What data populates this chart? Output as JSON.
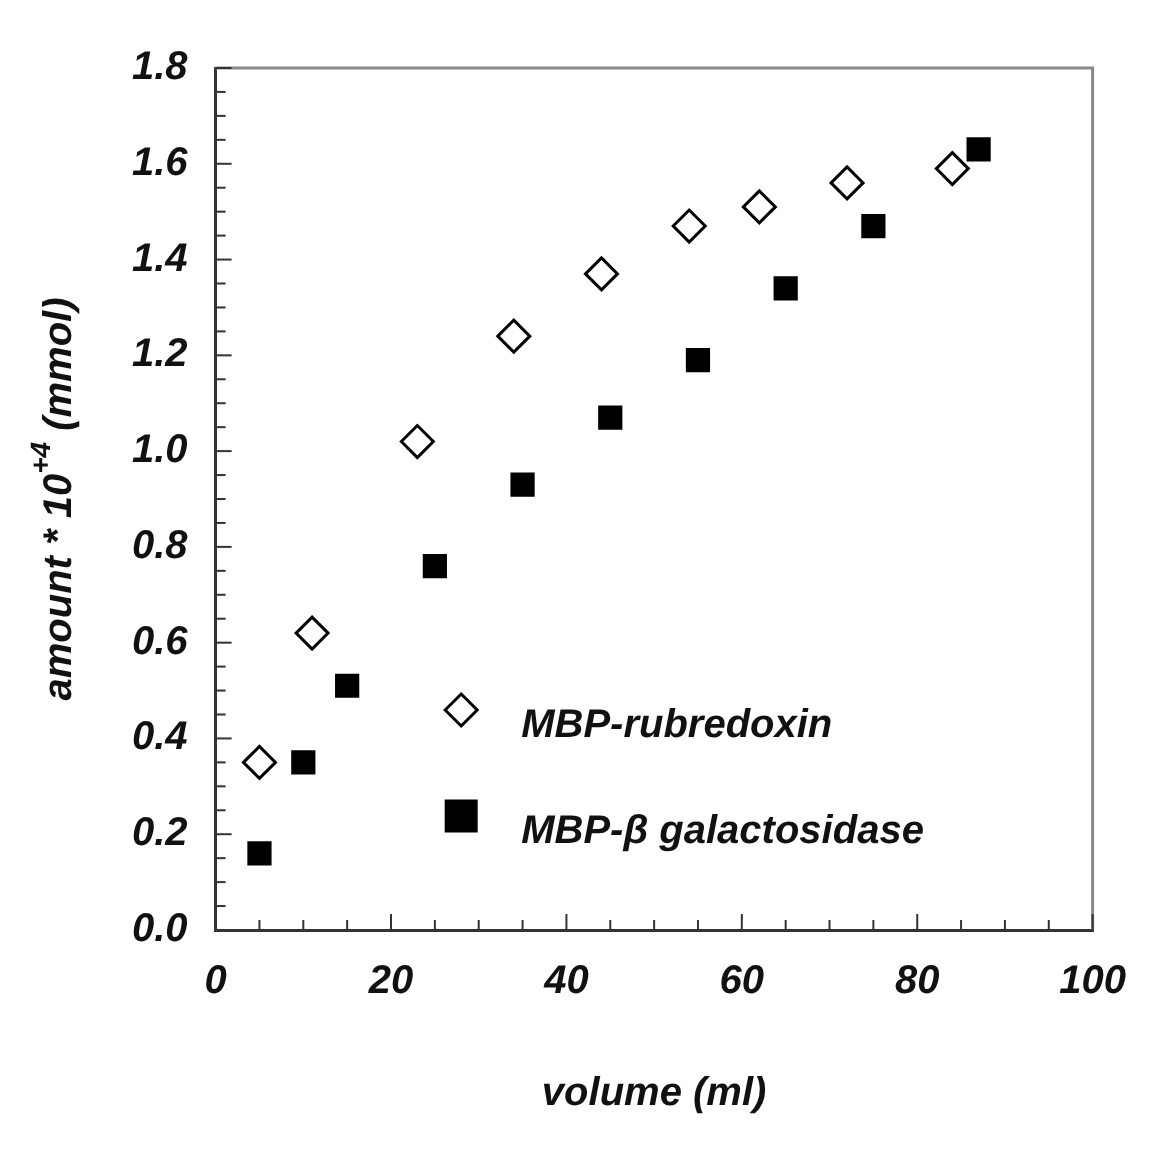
{
  "chart_data": {
    "type": "scatter",
    "xlabel": "volume (ml)",
    "ylabel": "amount * 10$^{+4}$ (mmol)",
    "xlim": [
      0,
      100
    ],
    "ylim": [
      0,
      1.8
    ],
    "xticks": [
      0,
      {
        "value": 5,
        "label": null
      },
      {
        "value": 10,
        "label": null
      },
      {
        "value": 15,
        "label": null
      },
      20,
      {
        "value": 25,
        "label": null
      },
      {
        "value": 30,
        "label": null
      },
      {
        "value": 35,
        "label": null
      },
      40,
      {
        "value": 45,
        "label": null
      },
      {
        "value": 50,
        "label": null
      },
      {
        "value": 55,
        "label": null
      },
      60,
      {
        "value": 65,
        "label": null
      },
      {
        "value": 70,
        "label": null
      },
      {
        "value": 75,
        "label": null
      },
      80,
      {
        "value": 85,
        "label": null
      },
      {
        "value": 90,
        "label": null
      },
      {
        "value": 95,
        "label": null
      },
      100
    ],
    "yticks": [
      {
        "value": 0,
        "label": "0.0"
      },
      {
        "value": 0.05,
        "label": null
      },
      {
        "value": 0.1,
        "label": null
      },
      {
        "value": 0.15,
        "label": null
      },
      {
        "value": 0.2,
        "label": "0.2"
      },
      {
        "value": 0.25,
        "label": null
      },
      {
        "value": 0.3,
        "label": null
      },
      {
        "value": 0.35,
        "label": null
      },
      {
        "value": 0.4,
        "label": "0.4"
      },
      {
        "value": 0.45,
        "label": null
      },
      {
        "value": 0.5,
        "label": null
      },
      {
        "value": 0.55,
        "label": null
      },
      {
        "value": 0.6,
        "label": "0.6"
      },
      {
        "value": 0.65,
        "label": null
      },
      {
        "value": 0.7,
        "label": null
      },
      {
        "value": 0.75,
        "label": null
      },
      {
        "value": 0.8,
        "label": "0.8"
      },
      {
        "value": 0.85,
        "label": null
      },
      {
        "value": 0.9,
        "label": null
      },
      {
        "value": 0.95,
        "label": null
      },
      {
        "value": 1.0,
        "label": "1.0"
      },
      {
        "value": 1.05,
        "label": null
      },
      {
        "value": 1.1,
        "label": null
      },
      {
        "value": 1.15,
        "label": null
      },
      {
        "value": 1.2,
        "label": "1.2"
      },
      {
        "value": 1.25,
        "label": null
      },
      {
        "value": 1.3,
        "label": null
      },
      {
        "value": 1.35,
        "label": null
      },
      {
        "value": 1.4,
        "label": "1.4"
      },
      {
        "value": 1.45,
        "label": null
      },
      {
        "value": 1.5,
        "label": null
      },
      {
        "value": 1.55,
        "label": null
      },
      {
        "value": 1.6,
        "label": "1.6"
      },
      {
        "value": 1.65,
        "label": null
      },
      {
        "value": 1.7,
        "label": null
      },
      {
        "value": 1.75,
        "label": null
      },
      {
        "value": 1.8,
        "label": "1.8"
      }
    ],
    "grid": false,
    "legend": "bottom",
    "series": [
      {
        "name": "MBP-rubredoxin",
        "color": "#000000",
        "marker": "diamond",
        "x": [
          5,
          11,
          23,
          34,
          44,
          54,
          62,
          72,
          84
        ],
        "values": [
          0.35,
          0.62,
          1.02,
          1.24,
          1.37,
          1.47,
          1.51,
          1.56,
          1.59
        ]
      },
      {
        "name": "MBP-β galactosidase",
        "color": "#000000",
        "marker": "square",
        "x": [
          5,
          10,
          15,
          25,
          35,
          45,
          55,
          65,
          75,
          87
        ],
        "values": [
          0.16,
          0.35,
          0.51,
          0.76,
          0.93,
          1.07,
          1.19,
          1.34,
          1.47,
          1.63
        ]
      }
    ]
  }
}
